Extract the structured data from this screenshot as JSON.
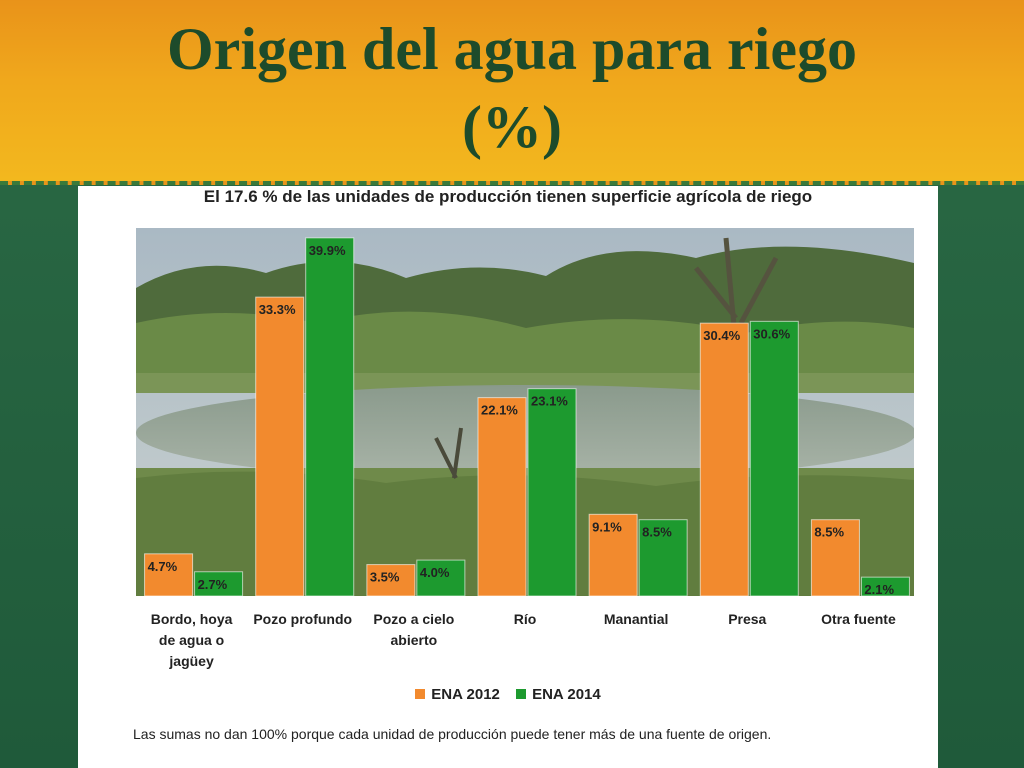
{
  "slide": {
    "title_line1": "Origen del agua para riego",
    "title_line2": "(%)"
  },
  "chart_data": {
    "type": "bar",
    "title": "El 17.6 % de las unidades de producción tienen superficie agrícola de riego",
    "categories": [
      [
        "Bordo, hoya",
        "de agua o",
        "jagüey"
      ],
      [
        "Pozo profundo"
      ],
      [
        "Pozo a cielo",
        "abierto"
      ],
      [
        "Río"
      ],
      [
        "Manantial"
      ],
      [
        "Presa"
      ],
      [
        "Otra fuente"
      ]
    ],
    "series": [
      {
        "name": "ENA 2012",
        "color": "#f28a2e",
        "values": [
          4.7,
          33.3,
          3.5,
          22.1,
          9.1,
          30.4,
          8.5
        ]
      },
      {
        "name": "ENA 2014",
        "color": "#1d9a2f",
        "values": [
          2.7,
          39.9,
          4.0,
          23.1,
          8.5,
          30.6,
          2.1
        ]
      }
    ],
    "value_suffix": "%",
    "ylim": [
      0,
      41
    ],
    "legend_position": "bottom",
    "footnote": "Las sumas no dan 100% porque cada unidad de producción puede tener más de una fuente de origen."
  }
}
